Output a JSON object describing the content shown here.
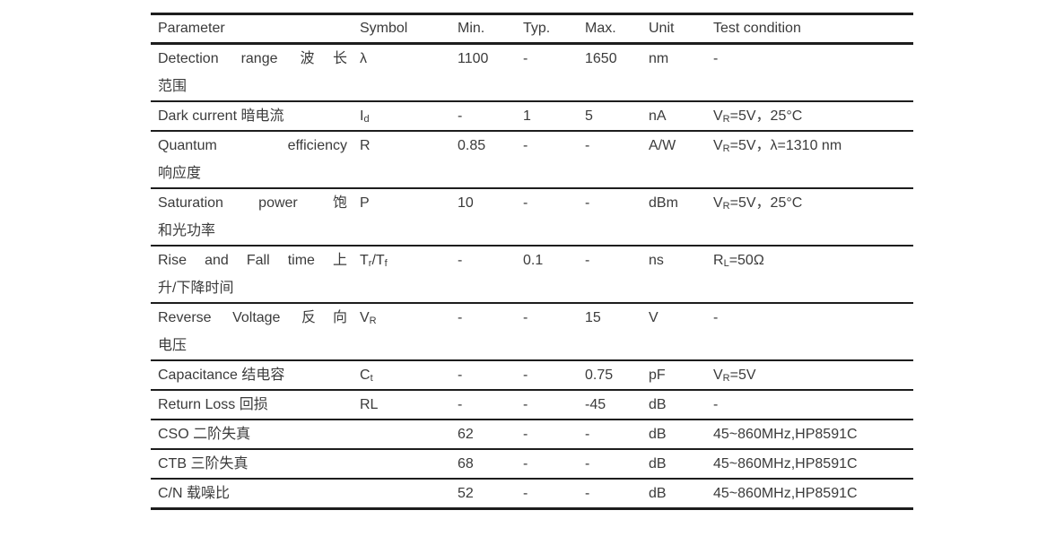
{
  "page": {
    "background_color": "#ffffff",
    "text_color": "#3b3b3b",
    "rule_color": "#1d1d1d"
  },
  "table": {
    "columns": [
      "Parameter",
      "Symbol",
      "Min.",
      "Typ.",
      "Max.",
      "Unit",
      "Test condition"
    ],
    "rows": [
      {
        "parameter_lines": [
          "Detection range 波长",
          "范围"
        ],
        "symbol": [
          {
            "t": "λ"
          }
        ],
        "min": "1100",
        "typ": "-",
        "max": "1650",
        "unit": "nm",
        "test_condition": [
          {
            "t": "-"
          }
        ]
      },
      {
        "parameter_lines": [
          "Dark current 暗电流"
        ],
        "symbol": [
          {
            "t": "I"
          },
          {
            "t": "d",
            "sub": true
          }
        ],
        "min": "-",
        "typ": "1",
        "max": "5",
        "unit": "nA",
        "test_condition": [
          {
            "t": "V"
          },
          {
            "t": "R",
            "sub": true
          },
          {
            "t": "=5V，25°C"
          }
        ]
      },
      {
        "parameter_lines": [
          "Quantum efficiency",
          "响应度"
        ],
        "symbol": [
          {
            "t": "R"
          }
        ],
        "min": "0.85",
        "typ": "-",
        "max": "-",
        "unit": "A/W",
        "test_condition": [
          {
            "t": "V"
          },
          {
            "t": "R",
            "sub": true
          },
          {
            "t": "=5V，λ=1310 nm"
          }
        ]
      },
      {
        "parameter_lines": [
          "Saturation power 饱",
          "和光功率"
        ],
        "symbol": [
          {
            "t": "P"
          }
        ],
        "min": "10",
        "typ": "-",
        "max": "-",
        "unit": "dBm",
        "test_condition": [
          {
            "t": "V"
          },
          {
            "t": "R",
            "sub": true
          },
          {
            "t": "=5V，25°C"
          }
        ]
      },
      {
        "parameter_lines": [
          "Rise and Fall time 上",
          "升/下降时间"
        ],
        "symbol": [
          {
            "t": "T"
          },
          {
            "t": "r",
            "sub": true
          },
          {
            "t": "/T"
          },
          {
            "t": "f",
            "sub": true
          }
        ],
        "min": "-",
        "typ": "0.1",
        "max": "-",
        "unit": "ns",
        "test_condition": [
          {
            "t": "R"
          },
          {
            "t": "L",
            "sub": true
          },
          {
            "t": "=50Ω"
          }
        ]
      },
      {
        "parameter_lines": [
          "Reverse Voltage 反向",
          "电压"
        ],
        "symbol": [
          {
            "t": "V"
          },
          {
            "t": "R",
            "sub": true
          }
        ],
        "min": "-",
        "typ": "-",
        "max": "15",
        "unit": "V",
        "test_condition": [
          {
            "t": "-"
          }
        ]
      },
      {
        "parameter_lines": [
          "Capacitance 结电容"
        ],
        "symbol": [
          {
            "t": "C"
          },
          {
            "t": "t",
            "sub": true
          }
        ],
        "min": "-",
        "typ": "-",
        "max": "0.75",
        "unit": "pF",
        "test_condition": [
          {
            "t": "V"
          },
          {
            "t": "R",
            "sub": true
          },
          {
            "t": "=5V"
          }
        ]
      },
      {
        "parameter_lines": [
          "Return Loss 回损"
        ],
        "symbol": [
          {
            "t": "RL"
          }
        ],
        "min": "-",
        "typ": "-",
        "max": "-45",
        "unit": "dB",
        "test_condition": [
          {
            "t": "-"
          }
        ]
      },
      {
        "parameter_lines": [
          "CSO 二阶失真"
        ],
        "symbol": [],
        "min": "62",
        "typ": "-",
        "max": "-",
        "unit": "dB",
        "test_condition": [
          {
            "t": "45~860MHz,HP8591C"
          }
        ]
      },
      {
        "parameter_lines": [
          "CTB 三阶失真"
        ],
        "symbol": [],
        "min": "68",
        "typ": "-",
        "max": "-",
        "unit": "dB",
        "test_condition": [
          {
            "t": "45~860MHz,HP8591C"
          }
        ]
      },
      {
        "parameter_lines": [
          "C/N 载噪比"
        ],
        "symbol": [],
        "min": "52",
        "typ": "-",
        "max": "-",
        "unit": "dB",
        "test_condition": [
          {
            "t": "45~860MHz,HP8591C"
          }
        ]
      }
    ]
  }
}
